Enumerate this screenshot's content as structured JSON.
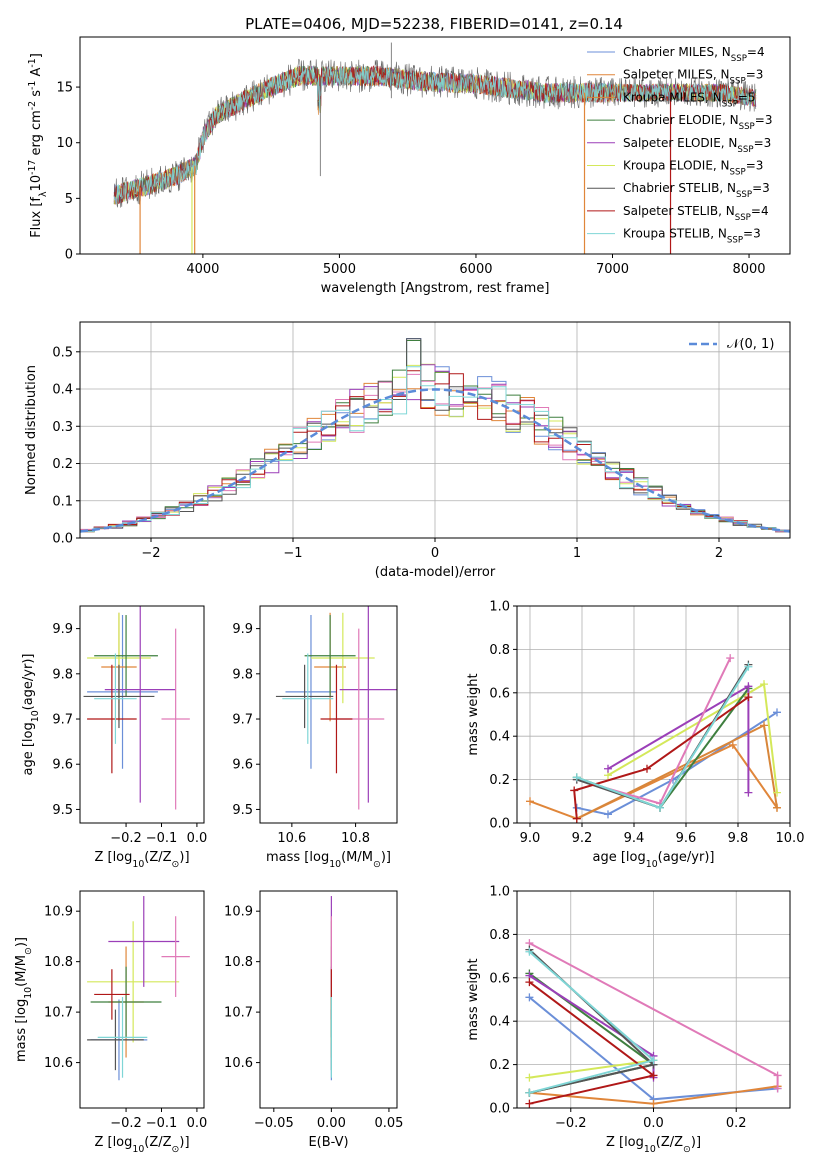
{
  "figure": {
    "title": "PLATE=0406, MJD=52238, FIBERID=0141, z=0.14"
  },
  "legend_labels": [
    "Chabrier MILES, N<sub>SSP</sub>=4",
    "Salpeter MILES, N<sub>SSP</sub>=3",
    "Kroupa MILES, N<sub>SSP</sub>=5",
    "Chabrier ELODIE, N<sub>SSP</sub>=3",
    "Salpeter ELODIE, N<sub>SSP</sub>=3",
    "Kroupa ELODIE, N<sub>SSP</sub>=3",
    "Chabrier STELIB, N<sub>SSP</sub>=3",
    "Salpeter STELIB, N<sub>SSP</sub>=4",
    "Kroupa STELIB, N<sub>SSP</sub>=3"
  ],
  "chart_data": [
    {
      "id": "spectrum",
      "type": "line",
      "xlabel": "wavelength [Angstrom, rest frame]",
      "ylabel": "Flux [f<sub>λ</sub>10<sup>-17</sup> erg cm<sup>-2</sup> s<sup>-1</sup> A<sup>-1</sup>]",
      "xlim": [
        3100,
        8300
      ],
      "ylim": [
        0,
        19.5
      ],
      "xticks": [
        4000,
        5000,
        6000,
        7000,
        8000
      ],
      "yticks": [
        0,
        5,
        10,
        15
      ],
      "legend": "top-right",
      "continuum_knots": [
        [
          3350,
          5.3
        ],
        [
          3550,
          6.0
        ],
        [
          3800,
          7.0
        ],
        [
          3950,
          8.0
        ],
        [
          4000,
          10.5
        ],
        [
          4100,
          12.5
        ],
        [
          4300,
          13.8
        ],
        [
          4500,
          15.0
        ],
        [
          4700,
          16.0
        ],
        [
          5000,
          16.0
        ],
        [
          5300,
          16.0
        ],
        [
          5600,
          15.5
        ],
        [
          6000,
          15.3
        ],
        [
          6500,
          14.5
        ],
        [
          7000,
          14.5
        ],
        [
          7500,
          14.5
        ],
        [
          7800,
          14.5
        ],
        [
          8050,
          14.0
        ]
      ],
      "series": [
        {
          "name": "Chabrier MILES, N_SSP=4",
          "color": "#6b8fd8"
        },
        {
          "name": "Salpeter MILES, N_SSP=3",
          "color": "#e0863a"
        },
        {
          "name": "Kroupa MILES, N_SSP=5",
          "color": "#d8863a"
        },
        {
          "name": "Chabrier ELODIE, N_SSP=3",
          "color": "#3f7f3f"
        },
        {
          "name": "Salpeter ELODIE, N_SSP=3",
          "color": "#9b3fb8"
        },
        {
          "name": "Kroupa ELODIE, N_SSP=3",
          "color": "#d4e85a"
        },
        {
          "name": "Chabrier STELIB, N_SSP=3",
          "color": "#555555"
        },
        {
          "name": "Salpeter STELIB, N_SSP=4",
          "color": "#b01818"
        },
        {
          "name": "Kroupa STELIB, N_SSP=3",
          "color": "#7fd6d6"
        }
      ]
    },
    {
      "id": "residuals",
      "type": "histogram",
      "xlabel": "(data-model)/error",
      "ylabel": "Normed distribution",
      "xlim": [
        -2.5,
        2.5
      ],
      "ylim": [
        0,
        0.58
      ],
      "xticks": [
        -2,
        -1,
        0,
        1,
        2
      ],
      "yticks": [
        0.0,
        0.1,
        0.2,
        0.3,
        0.4,
        0.5
      ],
      "grid": true,
      "reference_label": "𝒩(0, 1)",
      "reference_color": "#5b8bd9",
      "legend": "top-right",
      "bin_width": 0.1,
      "colors": [
        "#6b8fd8",
        "#e0863a",
        "#d4e85a",
        "#3f7f3f",
        "#9b3fb8",
        "#e07ab8",
        "#555555",
        "#b01818",
        "#7fd6d6"
      ]
    },
    {
      "id": "age-vs-Z",
      "type": "errorbar",
      "xlabel": "Z [log<sub>10</sub>(Z/Z<sub>⊙</sub>)]",
      "ylabel": "age  [log<sub>10</sub>(age/yr)]",
      "xlim": [
        -0.33,
        0.02
      ],
      "ylim": [
        9.47,
        9.95
      ],
      "xticks": [
        -0.2,
        -0.1,
        0.0
      ],
      "xticklabels": [
        "−0.2",
        "−0.1",
        "0.0"
      ],
      "yticks": [
        9.5,
        9.6,
        9.7,
        9.8,
        9.9
      ],
      "points": [
        {
          "x": -0.21,
          "xerr": 0.1,
          "y": 9.76,
          "yerr": 0.17,
          "color": "#6b8fd8"
        },
        {
          "x": -0.22,
          "xerr": 0.05,
          "y": 9.815,
          "yerr": 0.12,
          "color": "#e0863a"
        },
        {
          "x": -0.22,
          "xerr": 0.09,
          "y": 9.835,
          "yerr": 0.1,
          "color": "#d4e85a"
        },
        {
          "x": -0.2,
          "xerr": 0.09,
          "y": 9.84,
          "yerr": 0.09,
          "color": "#3f7f3f"
        },
        {
          "x": -0.16,
          "xerr": 0.1,
          "y": 9.765,
          "yerr": 0.25,
          "color": "#9b3fb8"
        },
        {
          "x": -0.06,
          "xerr": 0.04,
          "y": 9.7,
          "yerr": 0.2,
          "color": "#e07ab8"
        },
        {
          "x": -0.22,
          "xerr": 0.1,
          "y": 9.75,
          "yerr": 0.07,
          "color": "#555555"
        },
        {
          "x": -0.24,
          "xerr": 0.07,
          "y": 9.7,
          "yerr": 0.12,
          "color": "#b01818"
        },
        {
          "x": -0.23,
          "xerr": 0.06,
          "y": 9.745,
          "yerr": 0.1,
          "color": "#7fd6d6"
        }
      ]
    },
    {
      "id": "age-vs-mass",
      "type": "errorbar",
      "xlabel": "mass [log<sub>10</sub>(M/M<sub>⊙</sub>)]",
      "ylabel": "",
      "xlim": [
        10.5,
        10.93
      ],
      "ylim": [
        9.47,
        9.95
      ],
      "xticks": [
        10.6,
        10.8
      ],
      "xticklabels": [
        "10.6",
        "10.8"
      ],
      "yticks": [
        9.5,
        9.6,
        9.7,
        9.8,
        9.9
      ],
      "points": [
        {
          "x": 10.66,
          "xerr": 0.08,
          "y": 9.76,
          "yerr": 0.17,
          "color": "#6b8fd8"
        },
        {
          "x": 10.72,
          "xerr": 0.05,
          "y": 9.815,
          "yerr": 0.12,
          "color": "#e0863a"
        },
        {
          "x": 10.76,
          "xerr": 0.1,
          "y": 9.835,
          "yerr": 0.1,
          "color": "#d4e85a"
        },
        {
          "x": 10.72,
          "xerr": 0.08,
          "y": 9.84,
          "yerr": 0.09,
          "color": "#3f7f3f"
        },
        {
          "x": 10.84,
          "xerr": 0.09,
          "y": 9.765,
          "yerr": 0.25,
          "color": "#9b3fb8"
        },
        {
          "x": 10.81,
          "xerr": 0.08,
          "y": 9.7,
          "yerr": 0.2,
          "color": "#e07ab8"
        },
        {
          "x": 10.64,
          "xerr": 0.09,
          "y": 9.75,
          "yerr": 0.07,
          "color": "#555555"
        },
        {
          "x": 10.74,
          "xerr": 0.05,
          "y": 9.7,
          "yerr": 0.12,
          "color": "#b01818"
        },
        {
          "x": 10.65,
          "xerr": 0.08,
          "y": 9.745,
          "yerr": 0.1,
          "color": "#7fd6d6"
        }
      ]
    },
    {
      "id": "massweight-vs-age",
      "type": "line",
      "xlabel": "age  [log<sub>10</sub>(age/yr)]",
      "ylabel": "mass weight",
      "xlim": [
        8.95,
        10.0
      ],
      "ylim": [
        0.0,
        1.0
      ],
      "xticks": [
        9.0,
        9.2,
        9.4,
        9.6,
        9.8,
        10.0
      ],
      "xticklabels": [
        "9.0",
        "9.2",
        "9.4",
        "9.6",
        "9.8",
        "10.0"
      ],
      "yticks": [
        0.0,
        0.2,
        0.4,
        0.6,
        0.8,
        1.0
      ],
      "grid": true,
      "series": [
        {
          "color": "#6b8fd8",
          "points": [
            [
              9.18,
              0.07
            ],
            [
              9.3,
              0.04
            ],
            [
              9.55,
              0.2
            ],
            [
              9.95,
              0.51
            ]
          ]
        },
        {
          "color": "#e0863a",
          "points": [
            [
              9.0,
              0.1
            ],
            [
              9.18,
              0.02
            ],
            [
              9.78,
              0.36
            ],
            [
              9.95,
              0.07
            ]
          ]
        },
        {
          "color": "#d8863a",
          "points": [
            [
              9.18,
              0.02
            ],
            [
              9.9,
              0.45
            ],
            [
              9.95,
              0.07
            ]
          ]
        },
        {
          "color": "#d4e85a",
          "points": [
            [
              9.3,
              0.22
            ],
            [
              9.9,
              0.64
            ],
            [
              9.95,
              0.14
            ]
          ]
        },
        {
          "color": "#3f7f3f",
          "points": [
            [
              9.18,
              0.21
            ],
            [
              9.5,
              0.07
            ],
            [
              9.84,
              0.62
            ]
          ]
        },
        {
          "color": "#9b3fb8",
          "points": [
            [
              9.3,
              0.25
            ],
            [
              9.84,
              0.63
            ],
            [
              9.84,
              0.14
            ]
          ]
        },
        {
          "color": "#e07ab8",
          "points": [
            [
              9.18,
              0.2
            ],
            [
              9.5,
              0.09
            ],
            [
              9.77,
              0.76
            ]
          ]
        },
        {
          "color": "#555555",
          "points": [
            [
              9.18,
              0.2
            ],
            [
              9.5,
              0.07
            ],
            [
              9.84,
              0.73
            ]
          ]
        },
        {
          "color": "#b01818",
          "points": [
            [
              9.18,
              0.02
            ],
            [
              9.17,
              0.15
            ],
            [
              9.45,
              0.25
            ],
            [
              9.84,
              0.58
            ]
          ]
        },
        {
          "color": "#7fd6d6",
          "points": [
            [
              9.18,
              0.21
            ],
            [
              9.5,
              0.07
            ],
            [
              9.84,
              0.72
            ]
          ]
        }
      ]
    },
    {
      "id": "mass-vs-Z",
      "type": "errorbar",
      "xlabel": "Z [log<sub>10</sub>(Z/Z<sub>⊙</sub>)]",
      "ylabel": "mass [log<sub>10</sub>(M/M<sub>⊙</sub>)]",
      "xlim": [
        -0.33,
        0.02
      ],
      "ylim": [
        10.51,
        10.94
      ],
      "xticks": [
        -0.2,
        -0.1,
        0.0
      ],
      "xticklabels": [
        "−0.2",
        "−0.1",
        "0.0"
      ],
      "yticks": [
        10.6,
        10.7,
        10.8,
        10.9
      ],
      "points": [
        {
          "x": -0.22,
          "xerr": 0.08,
          "y": 10.645,
          "yerr": 0.08,
          "color": "#6b8fd8"
        },
        {
          "x": -0.2,
          "xerr": 0.05,
          "y": 10.72,
          "yerr": 0.11,
          "color": "#e0863a"
        },
        {
          "x": -0.18,
          "xerr": 0.13,
          "y": 10.76,
          "yerr": 0.12,
          "color": "#d4e85a"
        },
        {
          "x": -0.2,
          "xerr": 0.1,
          "y": 10.72,
          "yerr": 0.07,
          "color": "#3f7f3f"
        },
        {
          "x": -0.15,
          "xerr": 0.1,
          "y": 10.84,
          "yerr": 0.09,
          "color": "#9b3fb8"
        },
        {
          "x": -0.06,
          "xerr": 0.04,
          "y": 10.81,
          "yerr": 0.08,
          "color": "#e07ab8"
        },
        {
          "x": -0.23,
          "xerr": 0.08,
          "y": 10.645,
          "yerr": 0.06,
          "color": "#555555"
        },
        {
          "x": -0.24,
          "xerr": 0.05,
          "y": 10.735,
          "yerr": 0.05,
          "color": "#b01818"
        },
        {
          "x": -0.21,
          "xerr": 0.07,
          "y": 10.65,
          "yerr": 0.08,
          "color": "#7fd6d6"
        }
      ]
    },
    {
      "id": "mass-vs-EBV",
      "type": "errorbar",
      "xlabel": "E(B-V)",
      "ylabel": "",
      "xlim": [
        -0.062,
        0.057
      ],
      "ylim": [
        10.51,
        10.94
      ],
      "xticks": [
        -0.05,
        0.0,
        0.05
      ],
      "xticklabels": [
        "−0.05",
        "0.00",
        "0.05"
      ],
      "yticks": [
        10.6,
        10.7,
        10.8,
        10.9
      ],
      "points": [
        {
          "x": 0.0,
          "xerr": 0.0,
          "y": 10.645,
          "yerr": 0.08,
          "color": "#6b8fd8"
        },
        {
          "x": 0.0,
          "xerr": 0.0,
          "y": 10.72,
          "yerr": 0.11,
          "color": "#e0863a"
        },
        {
          "x": 0.0,
          "xerr": 0.0,
          "y": 10.76,
          "yerr": 0.12,
          "color": "#d4e85a"
        },
        {
          "x": 0.0,
          "xerr": 0.0,
          "y": 10.72,
          "yerr": 0.07,
          "color": "#3f7f3f"
        },
        {
          "x": 0.0,
          "xerr": 0.0,
          "y": 10.84,
          "yerr": 0.09,
          "color": "#9b3fb8"
        },
        {
          "x": 0.0,
          "xerr": 0.0,
          "y": 10.81,
          "yerr": 0.08,
          "color": "#e07ab8"
        },
        {
          "x": 0.0,
          "xerr": 0.0,
          "y": 10.645,
          "yerr": 0.06,
          "color": "#555555"
        },
        {
          "x": 0.0,
          "xerr": 0.0,
          "y": 10.735,
          "yerr": 0.05,
          "color": "#b01818"
        },
        {
          "x": 0.0,
          "xerr": 0.0,
          "y": 10.65,
          "yerr": 0.08,
          "color": "#7fd6d6"
        }
      ]
    },
    {
      "id": "massweight-vs-Z",
      "type": "line",
      "xlabel": "Z [log<sub>10</sub>(Z/Z<sub>⊙</sub>)]",
      "ylabel": "mass weight",
      "xlim": [
        -0.33,
        0.33
      ],
      "ylim": [
        0.0,
        1.0
      ],
      "xticks": [
        -0.2,
        0.0,
        0.2
      ],
      "xticklabels": [
        "−0.2",
        "0.0",
        "0.2"
      ],
      "yticks": [
        0.0,
        0.2,
        0.4,
        0.6,
        0.8,
        1.0
      ],
      "grid": true,
      "series": [
        {
          "color": "#6b8fd8",
          "points": [
            [
              -0.3,
              0.51
            ],
            [
              0.0,
              0.04
            ],
            [
              0.3,
              0.09
            ]
          ]
        },
        {
          "color": "#e0863a",
          "points": [
            [
              -0.3,
              0.07
            ],
            [
              0.0,
              0.02
            ],
            [
              0.3,
              0.1
            ]
          ]
        },
        {
          "color": "#d4e85a",
          "points": [
            [
              -0.3,
              0.14
            ],
            [
              0.0,
              0.22
            ]
          ]
        },
        {
          "color": "#3f7f3f",
          "points": [
            [
              -0.3,
              0.62
            ],
            [
              0.0,
              0.2
            ],
            [
              -0.3,
              0.07
            ]
          ]
        },
        {
          "color": "#9b3fb8",
          "points": [
            [
              -0.3,
              0.61
            ],
            [
              0.0,
              0.24
            ],
            [
              0.0,
              0.14
            ]
          ]
        },
        {
          "color": "#e07ab8",
          "points": [
            [
              -0.3,
              0.76
            ],
            [
              0.3,
              0.15
            ],
            [
              0.3,
              0.09
            ]
          ]
        },
        {
          "color": "#555555",
          "points": [
            [
              -0.3,
              0.73
            ],
            [
              0.0,
              0.2
            ],
            [
              -0.3,
              0.07
            ]
          ]
        },
        {
          "color": "#b01818",
          "points": [
            [
              -0.3,
              0.02
            ],
            [
              0.0,
              0.15
            ],
            [
              -0.3,
              0.58
            ]
          ]
        },
        {
          "color": "#7fd6d6",
          "points": [
            [
              -0.3,
              0.72
            ],
            [
              0.0,
              0.22
            ],
            [
              -0.3,
              0.07
            ]
          ]
        }
      ]
    }
  ]
}
